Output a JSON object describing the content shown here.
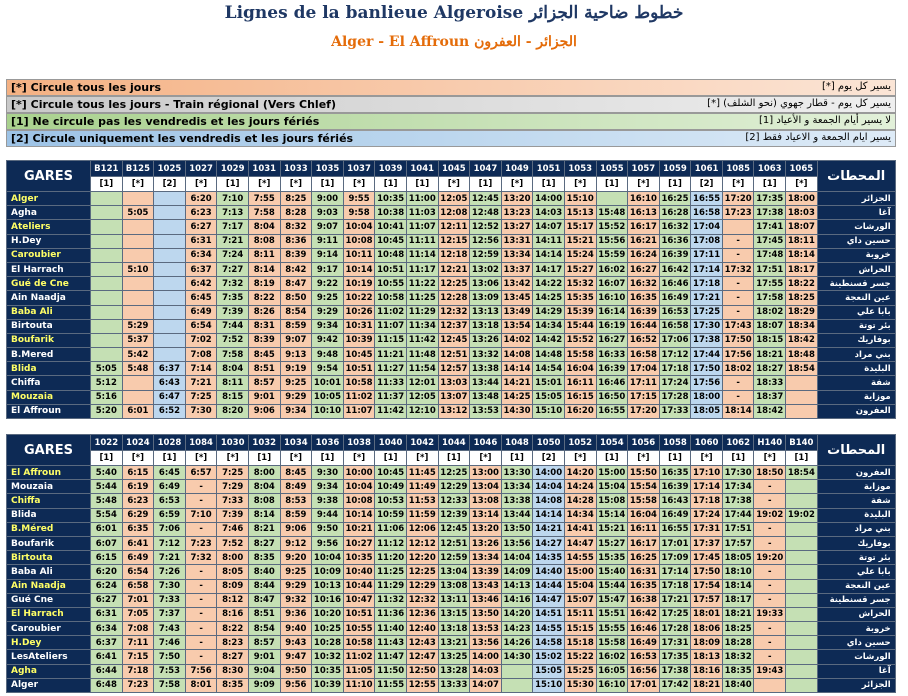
{
  "header": {
    "title": "Lignes de la banlieue Algeroise خطوط ضاحية الجزائر",
    "subtitle": "Alger - El Affroun الجزائر - العفرون"
  },
  "legend": [
    {
      "fr": "[*]  Circule tous les jours",
      "ar": "يسير كل يوم  [*]"
    },
    {
      "fr": "[*]  Circule tous les jours - Train régional (Vers Chlef)",
      "ar": "يسير كل يوم - قطار جهوي (نحو الشلف)  [*]"
    },
    {
      "fr": "[1]  Ne circule pas les vendredis et les jours fériés",
      "ar": "لا يسير أيام الجمعة و الأعياد  [1]"
    },
    {
      "fr": "[2]  Circule uniquement les vendredis et les jours fériés",
      "ar": "يسير ايام الجمعة و الاعياد فقط  [2]"
    }
  ],
  "colors": {
    "header_bg": "#0d2a55",
    "orange": "#f8cbad",
    "green": "#c5e0b4",
    "blue": "#bdd7ee",
    "grey": "#d9d9d9",
    "title": "#1f3864",
    "subtitle": "#e46c0a"
  },
  "table1": {
    "gares_label": "GARES",
    "ar_label": "المحطات",
    "trains": [
      "B121",
      "B125",
      "1025",
      "1027",
      "1029",
      "1031",
      "1033",
      "1035",
      "1037",
      "1039",
      "1041",
      "1045",
      "1047",
      "1049",
      "1051",
      "1053",
      "1055",
      "1057",
      "1059",
      "1061",
      "1085",
      "1063",
      "1065"
    ],
    "codes": [
      "[1]",
      "[*]",
      "[2]",
      "[*]",
      "[1]",
      "[*]",
      "[*]",
      "[1]",
      "[*]",
      "[1]",
      "[1]",
      "[*]",
      "[1]",
      "[*]",
      "[1]",
      "[*]",
      "[1]",
      "[*]",
      "[1]",
      "[2]",
      "[*]",
      "[1]",
      "[*]"
    ],
    "rows": [
      {
        "station": "Alger",
        "ar": "الجزائر",
        "times": [
          "",
          "",
          "",
          "6:20",
          "7:10",
          "7:55",
          "8:25",
          "9:00",
          "9:55",
          "10:35",
          "11:00",
          "12:05",
          "12:45",
          "13:20",
          "14:00",
          "15:10",
          "",
          "16:10",
          "16:25",
          "16:55",
          "17:20",
          "17:35",
          "18:00"
        ]
      },
      {
        "station": "Agha",
        "ar": "آغا",
        "times": [
          "",
          "5:05",
          "",
          "6:23",
          "7:13",
          "7:58",
          "8:28",
          "9:03",
          "9:58",
          "10:38",
          "11:03",
          "12:08",
          "12:48",
          "13:23",
          "14:03",
          "15:13",
          "15:48",
          "16:13",
          "16:28",
          "16:58",
          "17:23",
          "17:38",
          "18:03"
        ]
      },
      {
        "station": "Ateliers",
        "ar": "الورشات",
        "times": [
          "",
          "",
          "",
          "6:27",
          "7:17",
          "8:04",
          "8:32",
          "9:07",
          "10:04",
          "10:41",
          "11:07",
          "12:11",
          "12:52",
          "13:27",
          "14:07",
          "15:17",
          "15:52",
          "16:17",
          "16:32",
          "17:04",
          "",
          "17:41",
          "18:07"
        ]
      },
      {
        "station": "H.Dey",
        "ar": "حسين داي",
        "times": [
          "",
          "",
          "",
          "6:31",
          "7:21",
          "8:08",
          "8:36",
          "9:11",
          "10:08",
          "10:45",
          "11:11",
          "12:15",
          "12:56",
          "13:31",
          "14:11",
          "15:21",
          "15:56",
          "16:21",
          "16:36",
          "17:08",
          "-",
          "17:45",
          "18:11"
        ]
      },
      {
        "station": "Caroubier",
        "ar": "خروبة",
        "times": [
          "",
          "",
          "",
          "6:34",
          "7:24",
          "8:11",
          "8:39",
          "9:14",
          "10:11",
          "10:48",
          "11:14",
          "12:18",
          "12:59",
          "13:34",
          "14:14",
          "15:24",
          "15:59",
          "16:24",
          "16:39",
          "17:11",
          "-",
          "17:48",
          "18:14"
        ]
      },
      {
        "station": "El Harrach",
        "ar": "الحراش",
        "times": [
          "",
          "5:10",
          "",
          "6:37",
          "7:27",
          "8:14",
          "8:42",
          "9:17",
          "10:14",
          "10:51",
          "11:17",
          "12:21",
          "13:02",
          "13:37",
          "14:17",
          "15:27",
          "16:02",
          "16:27",
          "16:42",
          "17:14",
          "17:32",
          "17:51",
          "18:17"
        ]
      },
      {
        "station": "Gué de Cne",
        "ar": "جسر قسنطينة",
        "times": [
          "",
          "",
          "",
          "6:42",
          "7:32",
          "8:19",
          "8:47",
          "9:22",
          "10:19",
          "10:55",
          "11:22",
          "12:25",
          "13:06",
          "13:42",
          "14:22",
          "15:32",
          "16:07",
          "16:32",
          "16:46",
          "17:18",
          "-",
          "17:55",
          "18:22"
        ]
      },
      {
        "station": "Ain Naadja",
        "ar": "عين النعجة",
        "times": [
          "",
          "",
          "",
          "6:45",
          "7:35",
          "8:22",
          "8:50",
          "9:25",
          "10:22",
          "10:58",
          "11:25",
          "12:28",
          "13:09",
          "13:45",
          "14:25",
          "15:35",
          "16:10",
          "16:35",
          "16:49",
          "17:21",
          "-",
          "17:58",
          "18:25"
        ]
      },
      {
        "station": "Baba Ali",
        "ar": "بابا علي",
        "times": [
          "",
          "",
          "",
          "6:49",
          "7:39",
          "8:26",
          "8:54",
          "9:29",
          "10:26",
          "11:02",
          "11:29",
          "12:32",
          "13:13",
          "13:49",
          "14:29",
          "15:39",
          "16:14",
          "16:39",
          "16:53",
          "17:25",
          "-",
          "18:02",
          "18:29"
        ]
      },
      {
        "station": "Birtouta",
        "ar": "بئر توتة",
        "times": [
          "",
          "5:29",
          "",
          "6:54",
          "7:44",
          "8:31",
          "8:59",
          "9:34",
          "10:31",
          "11:07",
          "11:34",
          "12:37",
          "13:18",
          "13:54",
          "14:34",
          "15:44",
          "16:19",
          "16:44",
          "16:58",
          "17:30",
          "17:43",
          "18:07",
          "18:34"
        ]
      },
      {
        "station": "Boufarik",
        "ar": "بوفاريك",
        "times": [
          "",
          "5:37",
          "",
          "7:02",
          "7:52",
          "8:39",
          "9:07",
          "9:42",
          "10:39",
          "11:15",
          "11:42",
          "12:45",
          "13:26",
          "14:02",
          "14:42",
          "15:52",
          "16:27",
          "16:52",
          "17:06",
          "17:38",
          "17:50",
          "18:15",
          "18:42"
        ]
      },
      {
        "station": "B.Mered",
        "ar": "بني مراد",
        "times": [
          "",
          "5:42",
          "",
          "7:08",
          "7:58",
          "8:45",
          "9:13",
          "9:48",
          "10:45",
          "11:21",
          "11:48",
          "12:51",
          "13:32",
          "14:08",
          "14:48",
          "15:58",
          "16:33",
          "16:58",
          "17:12",
          "17:44",
          "17:56",
          "18:21",
          "18:48"
        ]
      },
      {
        "station": "Blida",
        "ar": "البليدة",
        "times": [
          "5:05",
          "5:48",
          "6:37",
          "7:14",
          "8:04",
          "8:51",
          "9:19",
          "9:54",
          "10:51",
          "11:27",
          "11:54",
          "12:57",
          "13:38",
          "14:14",
          "14:54",
          "16:04",
          "16:39",
          "17:04",
          "17:18",
          "17:50",
          "18:02",
          "18:27",
          "18:54"
        ]
      },
      {
        "station": "Chiffa",
        "ar": "شفة",
        "times": [
          "5:12",
          "",
          "6:43",
          "7:21",
          "8:11",
          "8:57",
          "9:25",
          "10:01",
          "10:58",
          "11:33",
          "12:01",
          "13:03",
          "13:44",
          "14:21",
          "15:01",
          "16:11",
          "16:46",
          "17:11",
          "17:24",
          "17:56",
          "-",
          "18:33",
          ""
        ]
      },
      {
        "station": "Mouzaia",
        "ar": "موزاية",
        "times": [
          "5:16",
          "",
          "6:47",
          "7:25",
          "8:15",
          "9:01",
          "9:29",
          "10:05",
          "11:02",
          "11:37",
          "12:05",
          "13:07",
          "13:48",
          "14:25",
          "15:05",
          "16:15",
          "16:50",
          "17:15",
          "17:28",
          "18:00",
          "-",
          "18:37",
          ""
        ]
      },
      {
        "station": "El Affroun",
        "ar": "العفرون",
        "times": [
          "5:20",
          "6:01",
          "6:52",
          "7:30",
          "8:20",
          "9:06",
          "9:34",
          "10:10",
          "11:07",
          "11:42",
          "12:10",
          "13:12",
          "13:53",
          "14:30",
          "15:10",
          "16:20",
          "16:55",
          "17:20",
          "17:33",
          "18:05",
          "18:14",
          "18:42",
          ""
        ]
      }
    ]
  },
  "table2": {
    "gares_label": "GARES",
    "ar_label": "المحطات",
    "trains": [
      "1022",
      "1024",
      "1028",
      "1084",
      "1030",
      "1032",
      "1034",
      "1036",
      "1038",
      "1040",
      "1042",
      "1044",
      "1046",
      "1048",
      "1050",
      "1052",
      "1054",
      "1056",
      "1058",
      "1060",
      "1062",
      "H140",
      "B140"
    ],
    "codes": [
      "[1]",
      "[*]",
      "[1]",
      "[*]",
      "[*]",
      "[1]",
      "[*]",
      "[1]",
      "[*]",
      "[1]",
      "[*]",
      "[1]",
      "[*]",
      "[1]",
      "[2]",
      "[*]",
      "[1]",
      "[*]",
      "[1]",
      "[*]",
      "[1]",
      "[*]",
      "[1]"
    ],
    "rows": [
      {
        "station": "El Affroun",
        "ar": "العفرون",
        "times": [
          "5:40",
          "6:15",
          "6:45",
          "6:57",
          "7:25",
          "8:00",
          "8:45",
          "9:30",
          "10:00",
          "10:45",
          "11:45",
          "12:25",
          "13:00",
          "13:30",
          "14:00",
          "14:20",
          "15:00",
          "15:50",
          "16:35",
          "17:10",
          "17:30",
          "18:50",
          "18:54"
        ]
      },
      {
        "station": "Mouzaia",
        "ar": "موزاية",
        "times": [
          "5:44",
          "6:19",
          "6:49",
          "-",
          "7:29",
          "8:04",
          "8:49",
          "9:34",
          "10:04",
          "10:49",
          "11:49",
          "12:29",
          "13:04",
          "13:34",
          "14:04",
          "14:24",
          "15:04",
          "15:54",
          "16:39",
          "17:14",
          "17:34",
          "-",
          ""
        ]
      },
      {
        "station": "Chiffa",
        "ar": "شفة",
        "times": [
          "5:48",
          "6:23",
          "6:53",
          "-",
          "7:33",
          "8:08",
          "8:53",
          "9:38",
          "10:08",
          "10:53",
          "11:53",
          "12:33",
          "13:08",
          "13:38",
          "14:08",
          "14:28",
          "15:08",
          "15:58",
          "16:43",
          "17:18",
          "17:38",
          "-",
          ""
        ]
      },
      {
        "station": "Blida",
        "ar": "البليدة",
        "times": [
          "5:54",
          "6:29",
          "6:59",
          "7:10",
          "7:39",
          "8:14",
          "8:59",
          "9:44",
          "10:14",
          "10:59",
          "11:59",
          "12:39",
          "13:14",
          "13:44",
          "14:14",
          "14:34",
          "15:14",
          "16:04",
          "16:49",
          "17:24",
          "17:44",
          "19:02",
          "19:02"
        ]
      },
      {
        "station": "B.Méred",
        "ar": "بني مراد",
        "times": [
          "6:01",
          "6:35",
          "7:06",
          "-",
          "7:46",
          "8:21",
          "9:06",
          "9:50",
          "10:21",
          "11:06",
          "12:06",
          "12:45",
          "13:20",
          "13:50",
          "14:21",
          "14:41",
          "15:21",
          "16:11",
          "16:55",
          "17:31",
          "17:51",
          "-",
          ""
        ]
      },
      {
        "station": "Boufarik",
        "ar": "بوفاريك",
        "times": [
          "6:07",
          "6:41",
          "7:12",
          "7:23",
          "7:52",
          "8:27",
          "9:12",
          "9:56",
          "10:27",
          "11:12",
          "12:12",
          "12:51",
          "13:26",
          "13:56",
          "14:27",
          "14:47",
          "15:27",
          "16:17",
          "17:01",
          "17:37",
          "17:57",
          "-",
          ""
        ]
      },
      {
        "station": "Birtouta",
        "ar": "بئر توتة",
        "times": [
          "6:15",
          "6:49",
          "7:21",
          "7:32",
          "8:00",
          "8:35",
          "9:20",
          "10:04",
          "10:35",
          "11:20",
          "12:20",
          "12:59",
          "13:34",
          "14:04",
          "14:35",
          "14:55",
          "15:35",
          "16:25",
          "17:09",
          "17:45",
          "18:05",
          "19:20",
          ""
        ]
      },
      {
        "station": "Baba Ali",
        "ar": "بابا علي",
        "times": [
          "6:20",
          "6:54",
          "7:26",
          "-",
          "8:05",
          "8:40",
          "9:25",
          "10:09",
          "10:40",
          "11:25",
          "12:25",
          "13:04",
          "13:39",
          "14:09",
          "14:40",
          "15:00",
          "15:40",
          "16:31",
          "17:14",
          "17:50",
          "18:10",
          "-",
          ""
        ]
      },
      {
        "station": "Ain Naadja",
        "ar": "عين النعجة",
        "times": [
          "6:24",
          "6:58",
          "7:30",
          "-",
          "8:09",
          "8:44",
          "9:29",
          "10:13",
          "10:44",
          "11:29",
          "12:29",
          "13:08",
          "13:43",
          "14:13",
          "14:44",
          "15:04",
          "15:44",
          "16:35",
          "17:18",
          "17:54",
          "18:14",
          "-",
          ""
        ]
      },
      {
        "station": "Gué Cne",
        "ar": "جسر قسنطينة",
        "times": [
          "6:27",
          "7:01",
          "7:33",
          "-",
          "8:12",
          "8:47",
          "9:32",
          "10:16",
          "10:47",
          "11:32",
          "12:32",
          "13:11",
          "13:46",
          "14:16",
          "14:47",
          "15:07",
          "15:47",
          "16:38",
          "17:21",
          "17:57",
          "18:17",
          "-",
          ""
        ]
      },
      {
        "station": "El Harrach",
        "ar": "الحراش",
        "times": [
          "6:31",
          "7:05",
          "7:37",
          "-",
          "8:16",
          "8:51",
          "9:36",
          "10:20",
          "10:51",
          "11:36",
          "12:36",
          "13:15",
          "13:50",
          "14:20",
          "14:51",
          "15:11",
          "15:51",
          "16:42",
          "17:25",
          "18:01",
          "18:21",
          "19:33",
          ""
        ]
      },
      {
        "station": "Caroubier",
        "ar": "خروبة",
        "times": [
          "6:34",
          "7:08",
          "7:43",
          "-",
          "8:22",
          "8:54",
          "9:40",
          "10:25",
          "10:55",
          "11:40",
          "12:40",
          "13:18",
          "13:53",
          "14:23",
          "14:55",
          "15:15",
          "15:55",
          "16:46",
          "17:28",
          "18:06",
          "18:25",
          "-",
          ""
        ]
      },
      {
        "station": "H.Dey",
        "ar": "حسين داي",
        "times": [
          "6:37",
          "7:11",
          "7:46",
          "-",
          "8:23",
          "8:57",
          "9:43",
          "10:28",
          "10:58",
          "11:43",
          "12:43",
          "13:21",
          "13:56",
          "14:26",
          "14:58",
          "15:18",
          "15:58",
          "16:49",
          "17:31",
          "18:09",
          "18:28",
          "-",
          ""
        ]
      },
      {
        "station": "LesAteliers",
        "ar": "الورشات",
        "times": [
          "6:41",
          "7:15",
          "7:50",
          "-",
          "8:27",
          "9:01",
          "9:47",
          "10:32",
          "11:02",
          "11:47",
          "12:47",
          "13:25",
          "14:00",
          "14:30",
          "15:02",
          "15:22",
          "16:02",
          "16:53",
          "17:35",
          "18:13",
          "18:32",
          "-",
          ""
        ]
      },
      {
        "station": "Agha",
        "ar": "آغا",
        "times": [
          "6:44",
          "7:18",
          "7:53",
          "7:56",
          "8:30",
          "9:04",
          "9:50",
          "10:35",
          "11:05",
          "11:50",
          "12:50",
          "13:28",
          "14:03",
          "",
          "15:05",
          "15:25",
          "16:05",
          "16:56",
          "17:38",
          "18:16",
          "18:35",
          "19:43",
          ""
        ]
      },
      {
        "station": "Alger",
        "ar": "الجزائر",
        "times": [
          "6:48",
          "7:23",
          "7:58",
          "8:01",
          "8:35",
          "9:09",
          "9:56",
          "10:39",
          "11:10",
          "11:55",
          "12:55",
          "13:33",
          "14:07",
          "",
          "15:10",
          "15:30",
          "16:10",
          "17:01",
          "17:42",
          "18:21",
          "18:40",
          "",
          ""
        ]
      }
    ]
  }
}
